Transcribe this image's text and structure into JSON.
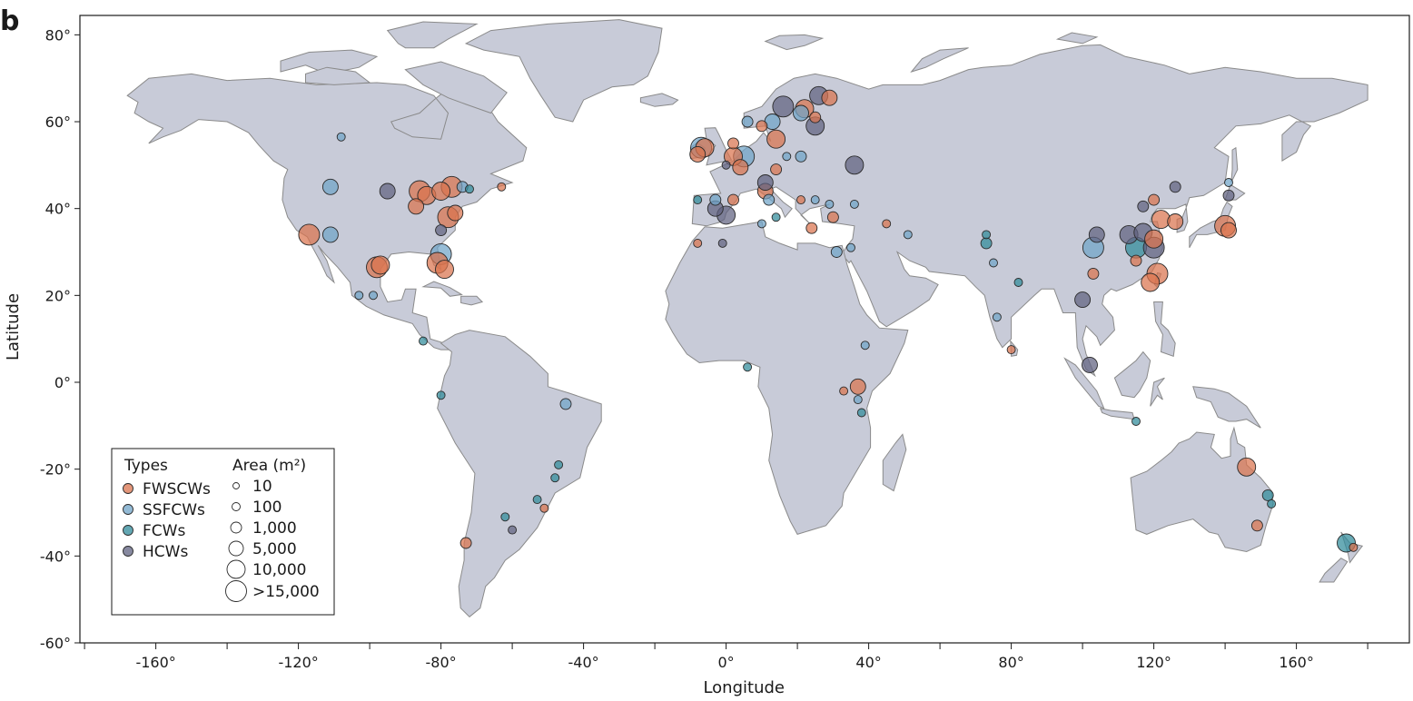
{
  "panel_label": "b",
  "colors": {
    "FWSCWs": "#d9734e",
    "SSFCWs": "#6fa3c7",
    "FCWs": "#2f8a9a",
    "HCWs": "#5f6180",
    "land": "#c8cbd8",
    "border": "#8a8a8a"
  },
  "chart_data": {
    "type": "scatter",
    "xlabel": "Longitude",
    "ylabel": "Latitude",
    "xlim": [
      -180,
      190
    ],
    "ylim": [
      -60,
      85
    ],
    "x_ticks": [
      -160,
      -120,
      -80,
      -40,
      0,
      40,
      80,
      120,
      160
    ],
    "x_tick_labels": [
      "-160°",
      "-120°",
      "-80°",
      "-40°",
      "0°",
      "40°",
      "80°",
      "120°",
      "160°"
    ],
    "y_ticks": [
      80,
      60,
      40,
      20,
      0,
      -20,
      -40,
      -60
    ],
    "y_tick_labels": [
      "80°",
      "60°",
      "40°",
      "20°",
      "0°",
      "-20°",
      "-40°",
      "-60°"
    ],
    "legend": {
      "types_title": "Types",
      "types": [
        "FWSCWs",
        "SSFCWs",
        "FCWs",
        "HCWs"
      ],
      "area_title": "Area (m²)",
      "area_labels": [
        "10",
        "100",
        "1,000",
        "5,000",
        "10,000",
        ">15,000"
      ],
      "area_values": [
        10,
        100,
        1000,
        5000,
        10000,
        15000
      ],
      "placement": "bottom-left"
    },
    "points": [
      {
        "type": "FWSCWs",
        "lon": -117,
        "lat": 34,
        "area": 15000
      },
      {
        "type": "SSFCWs",
        "lon": -111,
        "lat": 34,
        "area": 5000
      },
      {
        "type": "SSFCWs",
        "lon": -111,
        "lat": 45,
        "area": 5000
      },
      {
        "type": "HCWs",
        "lon": -95,
        "lat": 44,
        "area": 5000
      },
      {
        "type": "FWSCWs",
        "lon": -98,
        "lat": 26.5,
        "area": 15000
      },
      {
        "type": "FWSCWs",
        "lon": -97,
        "lat": 27,
        "area": 10000
      },
      {
        "type": "FWSCWs",
        "lon": -87,
        "lat": 40.5,
        "area": 5000
      },
      {
        "type": "FWSCWs",
        "lon": -86,
        "lat": 44,
        "area": 15000
      },
      {
        "type": "FWSCWs",
        "lon": -84,
        "lat": 43,
        "area": 10000
      },
      {
        "type": "FWSCWs",
        "lon": -80,
        "lat": 44,
        "area": 10000
      },
      {
        "type": "FWSCWs",
        "lon": -77,
        "lat": 45,
        "area": 15000
      },
      {
        "type": "FWSCWs",
        "lon": -78,
        "lat": 38,
        "area": 15000
      },
      {
        "type": "FWSCWs",
        "lon": -76,
        "lat": 39,
        "area": 5000
      },
      {
        "type": "SSFCWs",
        "lon": -80,
        "lat": 29.5,
        "area": 15000
      },
      {
        "type": "FWSCWs",
        "lon": -81,
        "lat": 27.5,
        "area": 15000
      },
      {
        "type": "FWSCWs",
        "lon": -79,
        "lat": 26,
        "area": 10000
      },
      {
        "type": "HCWs",
        "lon": -80,
        "lat": 35,
        "area": 1000
      },
      {
        "type": "SSFCWs",
        "lon": -108,
        "lat": 56.5,
        "area": 100
      },
      {
        "type": "SSFCWs",
        "lon": -74,
        "lat": 45,
        "area": 1000
      },
      {
        "type": "FCWs",
        "lon": -72,
        "lat": 44.5,
        "area": 100
      },
      {
        "type": "FWSCWs",
        "lon": -63,
        "lat": 45,
        "area": 100
      },
      {
        "type": "SSFCWs",
        "lon": -103,
        "lat": 20,
        "area": 100
      },
      {
        "type": "SSFCWs",
        "lon": -99,
        "lat": 20,
        "area": 100
      },
      {
        "type": "FCWs",
        "lon": -85,
        "lat": 9.5,
        "area": 100
      },
      {
        "type": "FCWs",
        "lon": -80,
        "lat": -3,
        "area": 100
      },
      {
        "type": "SSFCWs",
        "lon": -45,
        "lat": -5,
        "area": 1000
      },
      {
        "type": "FCWs",
        "lon": -47,
        "lat": -19,
        "area": 100
      },
      {
        "type": "FCWs",
        "lon": -48,
        "lat": -22,
        "area": 100
      },
      {
        "type": "FCWs",
        "lon": -53,
        "lat": -27,
        "area": 100
      },
      {
        "type": "FWSCWs",
        "lon": -51,
        "lat": -29,
        "area": 100
      },
      {
        "type": "FCWs",
        "lon": -62,
        "lat": -31,
        "area": 100
      },
      {
        "type": "HCWs",
        "lon": -60,
        "lat": -34,
        "area": 100
      },
      {
        "type": "FWSCWs",
        "lon": -73,
        "lat": -37,
        "area": 1000
      },
      {
        "type": "SSFCWs",
        "lon": -7,
        "lat": 54,
        "area": 15000
      },
      {
        "type": "FWSCWs",
        "lon": -6,
        "lat": 54,
        "area": 10000
      },
      {
        "type": "FWSCWs",
        "lon": -8,
        "lat": 52.5,
        "area": 5000
      },
      {
        "type": "SSFCWs",
        "lon": 5,
        "lat": 52,
        "area": 15000
      },
      {
        "type": "FWSCWs",
        "lon": 2,
        "lat": 52,
        "area": 10000
      },
      {
        "type": "FWSCWs",
        "lon": 4,
        "lat": 49.5,
        "area": 5000
      },
      {
        "type": "FWSCWs",
        "lon": 2,
        "lat": 55,
        "area": 1000
      },
      {
        "type": "HCWs",
        "lon": 0,
        "lat": 50,
        "area": 100
      },
      {
        "type": "SSFCWs",
        "lon": -3,
        "lat": 42,
        "area": 1000
      },
      {
        "type": "HCWs",
        "lon": 0,
        "lat": 38.5,
        "area": 10000
      },
      {
        "type": "HCWs",
        "lon": -3,
        "lat": 40,
        "area": 5000
      },
      {
        "type": "FWSCWs",
        "lon": 2,
        "lat": 42,
        "area": 1000
      },
      {
        "type": "FCWs",
        "lon": -8,
        "lat": 42,
        "area": 100
      },
      {
        "type": "FWSCWs",
        "lon": 11,
        "lat": 44,
        "area": 5000
      },
      {
        "type": "HCWs",
        "lon": 11,
        "lat": 46,
        "area": 5000
      },
      {
        "type": "SSFCWs",
        "lon": 12,
        "lat": 42,
        "area": 1000
      },
      {
        "type": "FWSCWs",
        "lon": 14,
        "lat": 49,
        "area": 1000
      },
      {
        "type": "FWSCWs",
        "lon": 14,
        "lat": 56,
        "area": 10000
      },
      {
        "type": "SSFCWs",
        "lon": 13,
        "lat": 60,
        "area": 5000
      },
      {
        "type": "FWSCWs",
        "lon": 10,
        "lat": 59,
        "area": 1000
      },
      {
        "type": "HCWs",
        "lon": 16,
        "lat": 63.5,
        "area": 15000
      },
      {
        "type": "SSFCWs",
        "lon": 6,
        "lat": 60,
        "area": 1000
      },
      {
        "type": "SSFCWs",
        "lon": 21,
        "lat": 62,
        "area": 5000
      },
      {
        "type": "FWSCWs",
        "lon": 22,
        "lat": 63,
        "area": 10000
      },
      {
        "type": "FWSCWs",
        "lon": 25,
        "lat": 61,
        "area": 1000
      },
      {
        "type": "HCWs",
        "lon": 25,
        "lat": 59,
        "area": 10000
      },
      {
        "type": "HCWs",
        "lon": 26,
        "lat": 66,
        "area": 10000
      },
      {
        "type": "FWSCWs",
        "lon": 29,
        "lat": 65.5,
        "area": 5000
      },
      {
        "type": "SSFCWs",
        "lon": 21,
        "lat": 52,
        "area": 1000
      },
      {
        "type": "SSFCWs",
        "lon": 17,
        "lat": 52,
        "area": 100
      },
      {
        "type": "HCWs",
        "lon": 36,
        "lat": 50,
        "area": 10000
      },
      {
        "type": "FWSCWs",
        "lon": 21,
        "lat": 42,
        "area": 100
      },
      {
        "type": "SSFCWs",
        "lon": 25,
        "lat": 42,
        "area": 100
      },
      {
        "type": "SSFCWs",
        "lon": 29,
        "lat": 41,
        "area": 100
      },
      {
        "type": "FWSCWs",
        "lon": 30,
        "lat": 38,
        "area": 1000
      },
      {
        "type": "SSFCWs",
        "lon": 36,
        "lat": 41,
        "area": 100
      },
      {
        "type": "FCWs",
        "lon": 14,
        "lat": 38,
        "area": 100
      },
      {
        "type": "SSFCWs",
        "lon": 10,
        "lat": 36.5,
        "area": 100
      },
      {
        "type": "FWSCWs",
        "lon": 24,
        "lat": 35.5,
        "area": 1000
      },
      {
        "type": "HCWs",
        "lon": -1,
        "lat": 32,
        "area": 100
      },
      {
        "type": "FWSCWs",
        "lon": -8,
        "lat": 32,
        "area": 100
      },
      {
        "type": "SSFCWs",
        "lon": 31,
        "lat": 30,
        "area": 1000
      },
      {
        "type": "SSFCWs",
        "lon": 35,
        "lat": 31,
        "area": 100
      },
      {
        "type": "FWSCWs",
        "lon": 45,
        "lat": 36.5,
        "area": 100
      },
      {
        "type": "SSFCWs",
        "lon": 51,
        "lat": 34,
        "area": 100
      },
      {
        "type": "SSFCWs",
        "lon": 39,
        "lat": 8.5,
        "area": 100
      },
      {
        "type": "FWSCWs",
        "lon": 37,
        "lat": -1,
        "area": 5000
      },
      {
        "type": "FWSCWs",
        "lon": 33,
        "lat": -2,
        "area": 100
      },
      {
        "type": "SSFCWs",
        "lon": 37,
        "lat": -4,
        "area": 100
      },
      {
        "type": "FCWs",
        "lon": 38,
        "lat": -7,
        "area": 100
      },
      {
        "type": "FCWs",
        "lon": 6,
        "lat": 3.5,
        "area": 100
      },
      {
        "type": "FCWs",
        "lon": 73,
        "lat": 32,
        "area": 1000
      },
      {
        "type": "FCWs",
        "lon": 73,
        "lat": 34,
        "area": 100
      },
      {
        "type": "SSFCWs",
        "lon": 75,
        "lat": 27.5,
        "area": 100
      },
      {
        "type": "FCWs",
        "lon": 82,
        "lat": 23,
        "area": 100
      },
      {
        "type": "SSFCWs",
        "lon": 76,
        "lat": 15,
        "area": 100
      },
      {
        "type": "FWSCWs",
        "lon": 80,
        "lat": 7.5,
        "area": 100
      },
      {
        "type": "SSFCWs",
        "lon": 103,
        "lat": 31,
        "area": 15000
      },
      {
        "type": "HCWs",
        "lon": 104,
        "lat": 34,
        "area": 5000
      },
      {
        "type": "FWSCWs",
        "lon": 103,
        "lat": 25,
        "area": 1000
      },
      {
        "type": "HCWs",
        "lon": 100,
        "lat": 19,
        "area": 5000
      },
      {
        "type": "HCWs",
        "lon": 102,
        "lat": 4,
        "area": 5000
      },
      {
        "type": "FCWs",
        "lon": 115,
        "lat": 31,
        "area": 15000
      },
      {
        "type": "HCWs",
        "lon": 113,
        "lat": 34,
        "area": 10000
      },
      {
        "type": "HCWs",
        "lon": 117,
        "lat": 34.5,
        "area": 10000
      },
      {
        "type": "FWSCWs",
        "lon": 120,
        "lat": 33,
        "area": 10000
      },
      {
        "type": "HCWs",
        "lon": 120,
        "lat": 31,
        "area": 15000
      },
      {
        "type": "FWSCWs",
        "lon": 122,
        "lat": 37.5,
        "area": 10000
      },
      {
        "type": "FWSCWs",
        "lon": 126,
        "lat": 37,
        "area": 5000
      },
      {
        "type": "FWSCWs",
        "lon": 121,
        "lat": 25,
        "area": 15000
      },
      {
        "type": "FWSCWs",
        "lon": 119,
        "lat": 23,
        "area": 10000
      },
      {
        "type": "FWSCWs",
        "lon": 115,
        "lat": 28,
        "area": 1000
      },
      {
        "type": "HCWs",
        "lon": 117,
        "lat": 40.5,
        "area": 1000
      },
      {
        "type": "FWSCWs",
        "lon": 120,
        "lat": 42,
        "area": 1000
      },
      {
        "type": "HCWs",
        "lon": 126,
        "lat": 45,
        "area": 1000
      },
      {
        "type": "FWSCWs",
        "lon": 140,
        "lat": 36,
        "area": 15000
      },
      {
        "type": "FWSCWs",
        "lon": 141,
        "lat": 35,
        "area": 5000
      },
      {
        "type": "HCWs",
        "lon": 141,
        "lat": 43,
        "area": 1000
      },
      {
        "type": "SSFCWs",
        "lon": 141,
        "lat": 46,
        "area": 100
      },
      {
        "type": "FCWs",
        "lon": 115,
        "lat": -9,
        "area": 100
      },
      {
        "type": "FWSCWs",
        "lon": 146,
        "lat": -19.5,
        "area": 10000
      },
      {
        "type": "FCWs",
        "lon": 152,
        "lat": -26,
        "area": 1000
      },
      {
        "type": "FCWs",
        "lon": 153,
        "lat": -28,
        "area": 100
      },
      {
        "type": "FWSCWs",
        "lon": 149,
        "lat": -33,
        "area": 1000
      },
      {
        "type": "FCWs",
        "lon": 174,
        "lat": -37,
        "area": 10000
      },
      {
        "type": "FWSCWs",
        "lon": 176,
        "lat": -38,
        "area": 100
      }
    ]
  }
}
